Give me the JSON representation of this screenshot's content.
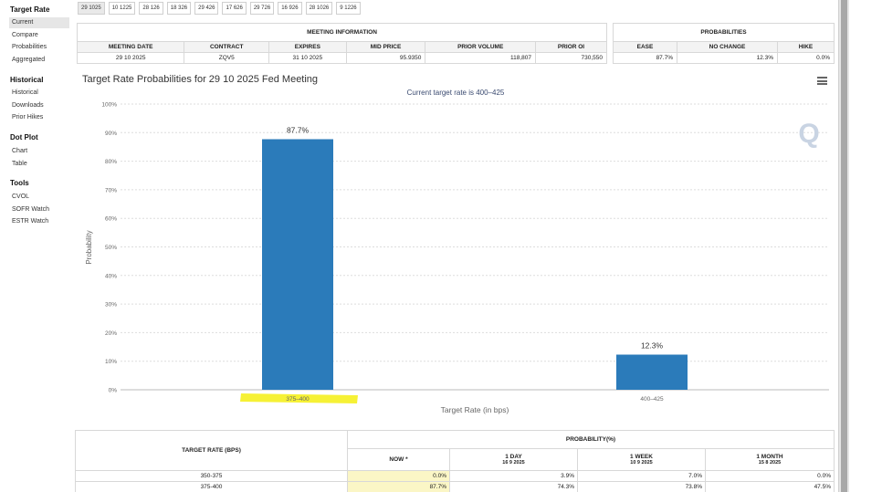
{
  "sidebar": {
    "sections": [
      {
        "title": "Target Rate",
        "items": [
          "Current",
          "Compare",
          "Probabilities",
          "Aggregated"
        ],
        "active": 0
      },
      {
        "title": "Historical",
        "items": [
          "Historical",
          "Downloads",
          "Prior Hikes"
        ]
      },
      {
        "title": "Dot Plot",
        "items": [
          "Chart",
          "Table"
        ]
      },
      {
        "title": "Tools",
        "items": [
          "CVOL",
          "SOFR Watch",
          "ESTR Watch"
        ]
      }
    ]
  },
  "tabs": [
    "29 1025",
    "10 1225",
    "28 126",
    "18 326",
    "29 426",
    "17 626",
    "29 726",
    "16 926",
    "28 1026",
    "9 1226"
  ],
  "active_tab": 0,
  "meeting_info": {
    "header": "MEETING INFORMATION",
    "columns": [
      "MEETING DATE",
      "CONTRACT",
      "EXPIRES",
      "MID PRICE",
      "PRIOR VOLUME",
      "PRIOR OI"
    ],
    "row": [
      "29 10 2025",
      "ZQV5",
      "31 10 2025",
      "95.9350",
      "118,807",
      "730,550"
    ]
  },
  "probabilities": {
    "header": "PROBABILITIES",
    "columns": [
      "EASE",
      "NO CHANGE",
      "HIKE"
    ],
    "row": [
      "87.7%",
      "12.3%",
      "0.0%"
    ]
  },
  "chart": {
    "title": "Target Rate Probabilities for 29 10 2025 Fed Meeting",
    "subtitle": "Current target rate is 400–425",
    "watermark": "Q",
    "menu_icon": "hamburger-menu-icon"
  },
  "chart_data": {
    "type": "bar",
    "categories": [
      "375–400",
      "400–425"
    ],
    "values": [
      87.7,
      12.3
    ],
    "data_labels": [
      "87.7%",
      "12.3%"
    ],
    "yticks": [
      "0%",
      "10%",
      "20%",
      "30%",
      "40%",
      "50%",
      "60%",
      "70%",
      "80%",
      "90%",
      "100%"
    ],
    "xlabel": "Target Rate (in bps)",
    "ylabel": "Probability",
    "ylim": [
      0,
      100
    ],
    "bar_color": "#2b7bba",
    "highlight_color": "#f5ef1f",
    "highlighted_category": "375–400",
    "grid": true
  },
  "prob_table": {
    "col_rate": "TARGET RATE (BPS)",
    "group": "PROBABILITY(%)",
    "columns": [
      {
        "label": "NOW *",
        "sub": ""
      },
      {
        "label": "1 DAY",
        "sub": "16 9 2025"
      },
      {
        "label": "1 WEEK",
        "sub": "10 9 2025"
      },
      {
        "label": "1 MONTH",
        "sub": "15 8 2025"
      }
    ],
    "rows": [
      {
        "rate": "350-375",
        "values": [
          "0.0%",
          "3.9%",
          "7.0%",
          "0.0%"
        ]
      },
      {
        "rate": "375-400",
        "values": [
          "87.7%",
          "74.3%",
          "73.8%",
          "47.5%"
        ]
      }
    ]
  }
}
